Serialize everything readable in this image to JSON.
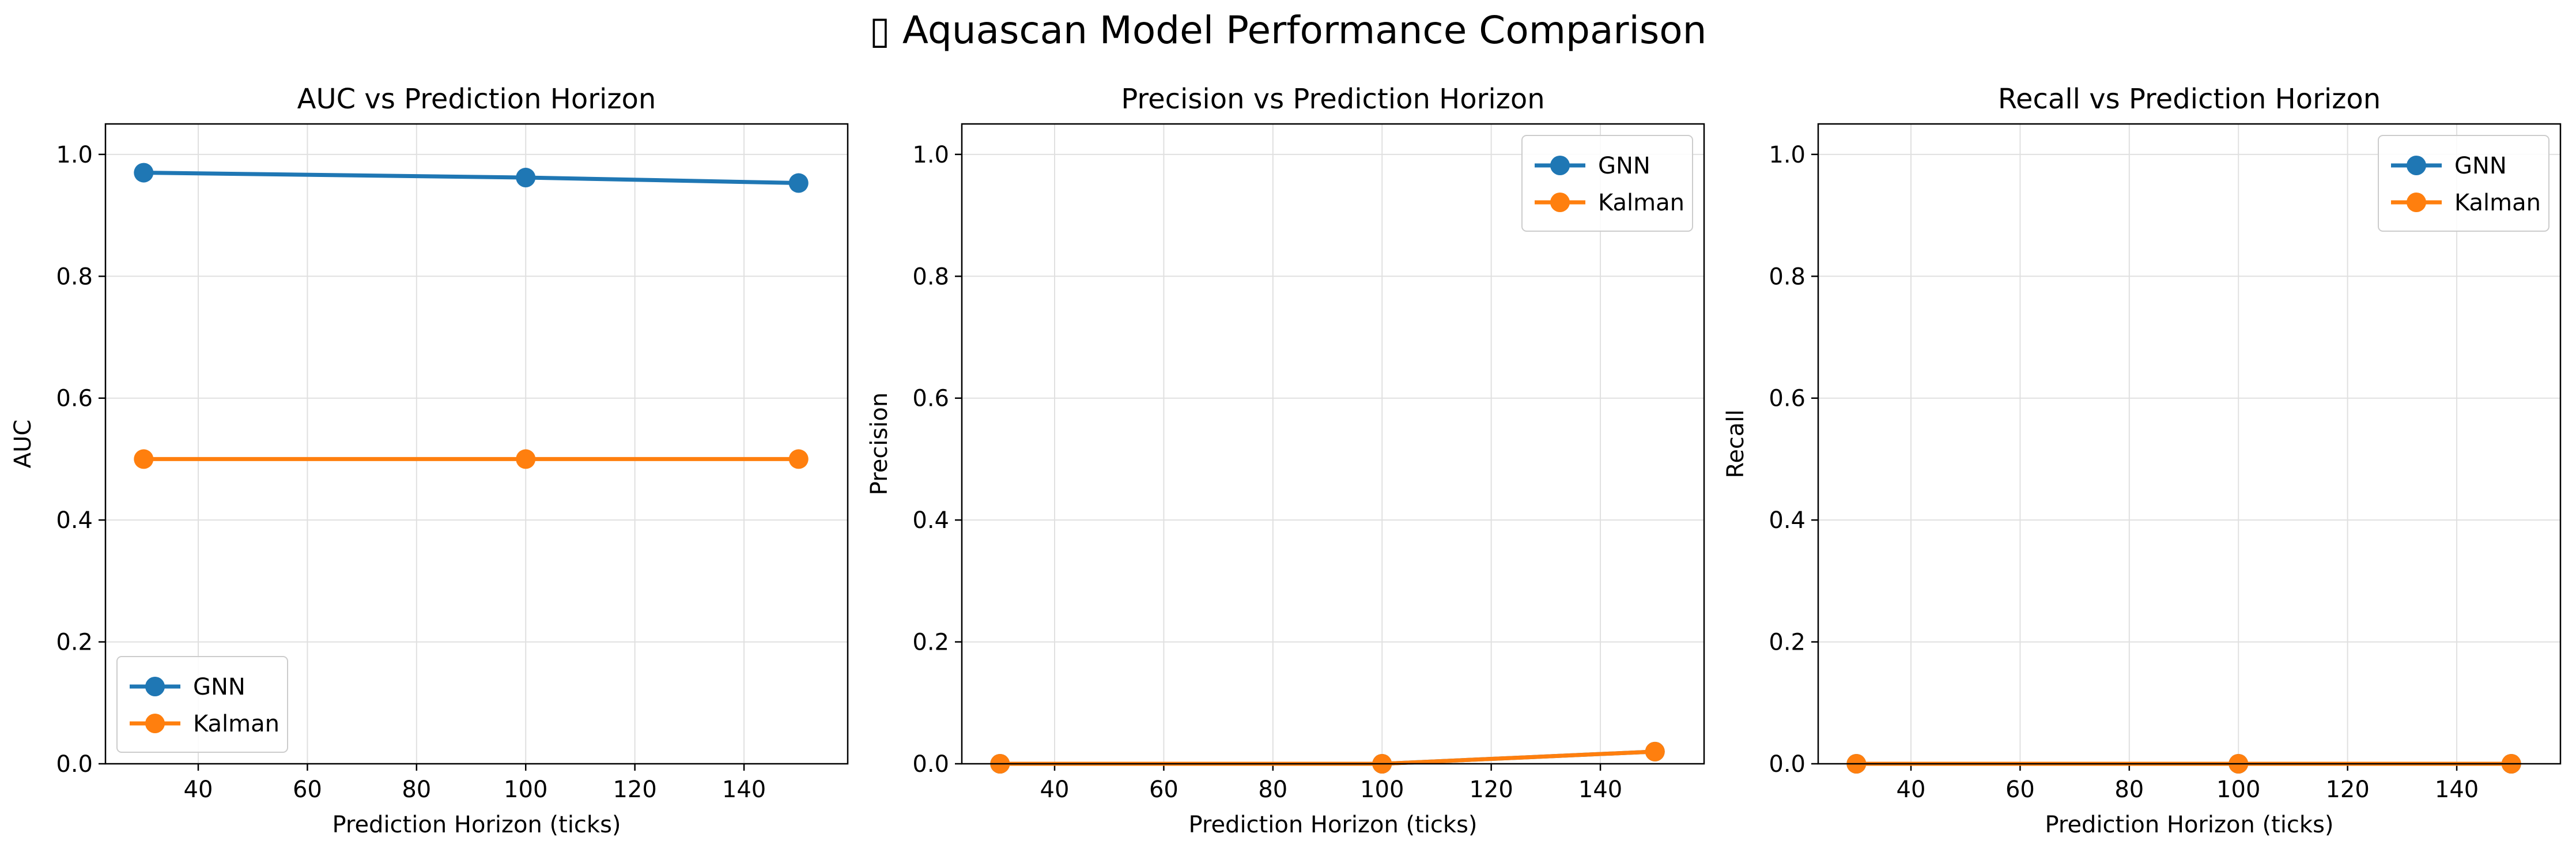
{
  "figure": {
    "title": "▯ Aquascan Model Performance Comparison"
  },
  "colors": {
    "GNN": "#1f77b4",
    "Kalman": "#ff7f0e",
    "grid": "#e0e0e0"
  },
  "chart_data": [
    {
      "type": "line",
      "title": "AUC vs Prediction Horizon",
      "xlabel": "Prediction Horizon (ticks)",
      "ylabel": "AUC",
      "x": [
        30,
        100,
        150
      ],
      "xlim": [
        23,
        159
      ],
      "ylim": [
        0,
        1.05
      ],
      "xticks": [
        "40",
        "60",
        "80",
        "100",
        "120",
        "140"
      ],
      "yticks": [
        "0.0",
        "0.2",
        "0.4",
        "0.6",
        "0.8",
        "1.0"
      ],
      "grid": true,
      "legend": "lower left",
      "series": [
        {
          "name": "GNN",
          "values": [
            0.97,
            0.962,
            0.953
          ]
        },
        {
          "name": "Kalman",
          "values": [
            0.5,
            0.5,
            0.5
          ]
        }
      ]
    },
    {
      "type": "line",
      "title": "Precision vs Prediction Horizon",
      "xlabel": "Prediction Horizon (ticks)",
      "ylabel": "Precision",
      "x": [
        30,
        100,
        150
      ],
      "xlim": [
        23,
        159
      ],
      "ylim": [
        0,
        1.05
      ],
      "xticks": [
        "40",
        "60",
        "80",
        "100",
        "120",
        "140"
      ],
      "yticks": [
        "0.0",
        "0.2",
        "0.4",
        "0.6",
        "0.8",
        "1.0"
      ],
      "grid": true,
      "legend": "upper right",
      "series": [
        {
          "name": "GNN",
          "values": [
            0.0,
            0.0,
            0.02
          ]
        },
        {
          "name": "Kalman",
          "values": [
            0.0,
            0.0,
            0.02
          ]
        }
      ]
    },
    {
      "type": "line",
      "title": "Recall vs Prediction Horizon",
      "xlabel": "Prediction Horizon (ticks)",
      "ylabel": "Recall",
      "x": [
        30,
        100,
        150
      ],
      "xlim": [
        23,
        159
      ],
      "ylim": [
        0,
        1.05
      ],
      "xticks": [
        "40",
        "60",
        "80",
        "100",
        "120",
        "140"
      ],
      "yticks": [
        "0.0",
        "0.2",
        "0.4",
        "0.6",
        "0.8",
        "1.0"
      ],
      "grid": true,
      "legend": "upper right",
      "series": [
        {
          "name": "GNN",
          "values": [
            0.0,
            0.0,
            0.0
          ]
        },
        {
          "name": "Kalman",
          "values": [
            0.0,
            0.0,
            0.0
          ]
        }
      ]
    }
  ]
}
